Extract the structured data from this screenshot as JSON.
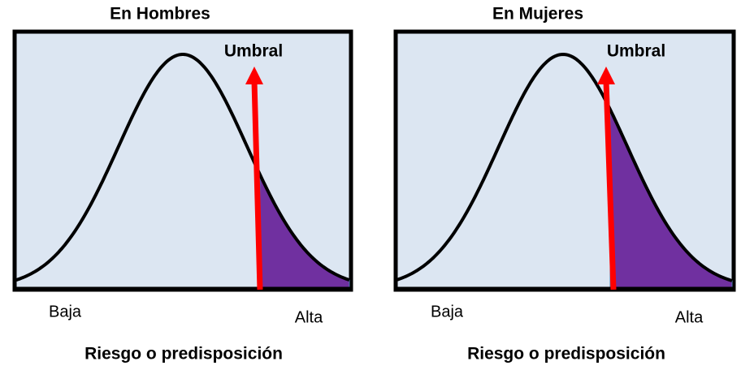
{
  "panels": [
    {
      "title": "En Hombres",
      "threshold_label": "Umbral",
      "low_label": "Baja",
      "high_label": "Alta",
      "axis_label": "Riesgo o predisposición"
    },
    {
      "title": "En Mujeres",
      "threshold_label": "Umbral",
      "low_label": "Baja",
      "high_label": "Alta",
      "axis_label": "Riesgo o predisposición"
    }
  ]
}
